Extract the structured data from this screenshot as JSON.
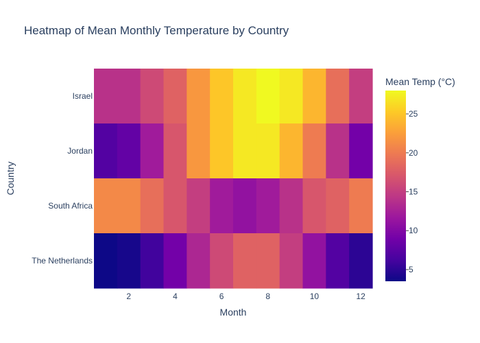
{
  "chart_data": {
    "type": "heatmap",
    "title": "Heatmap of Mean Monthly Temperature by Country",
    "xlabel": "Month",
    "ylabel": "Country",
    "x": [
      1,
      2,
      3,
      4,
      5,
      6,
      7,
      8,
      9,
      10,
      11,
      12
    ],
    "x_ticks": [
      "2",
      "4",
      "6",
      "8",
      "10",
      "12"
    ],
    "x_tick_values": [
      2,
      4,
      6,
      8,
      10,
      12
    ],
    "categories": [
      "Israel",
      "Jordan",
      "South Africa",
      "The Netherlands"
    ],
    "z": [
      [
        14,
        14,
        16,
        18,
        22,
        25,
        27,
        28,
        27,
        24,
        19,
        15
      ],
      [
        7,
        8,
        12,
        17,
        22,
        25,
        27,
        27,
        24,
        20,
        14,
        9
      ],
      [
        21,
        21,
        19,
        17,
        15,
        12,
        11,
        12,
        14,
        17,
        18,
        20
      ],
      [
        3,
        4,
        6,
        9,
        13,
        16,
        18,
        18,
        15,
        11,
        7,
        5
      ]
    ],
    "zlim": [
      3.5,
      28
    ],
    "colorbar": {
      "title": "Mean Temp (°C)",
      "ticks": [
        "5",
        "10",
        "15",
        "20",
        "25"
      ],
      "tick_values": [
        5,
        10,
        15,
        20,
        25
      ]
    },
    "colorscale": [
      "#0d0887",
      "#46039f",
      "#7201a8",
      "#9c179e",
      "#bd3786",
      "#d8576b",
      "#ed7953",
      "#fb9f3a",
      "#fdca26",
      "#f0f921"
    ]
  }
}
